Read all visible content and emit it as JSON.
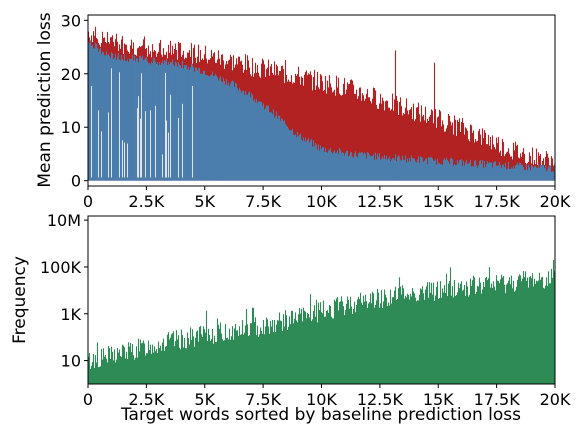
{
  "chart_data": [
    {
      "type": "area",
      "ylabel": "Mean prediction loss",
      "xlim": [
        0,
        20000
      ],
      "ylim": [
        -1,
        31
      ],
      "x_ticks": [
        0,
        2500,
        5000,
        7500,
        10000,
        12500,
        15000,
        17500,
        20000
      ],
      "x_tick_labels": [
        "0",
        "2.5K",
        "5K",
        "7.5K",
        "10K",
        "12.5K",
        "15K",
        "17.5K",
        "20K"
      ],
      "y_ticks": [
        0,
        10,
        20,
        30
      ],
      "y_tick_labels": [
        "0",
        "10",
        "20",
        "30"
      ],
      "colors": {
        "baseline": "#4682b4",
        "upper": "#b22222"
      },
      "series": [
        {
          "role": "baseline",
          "color": "#4682b4",
          "x": [
            0,
            500,
            1000,
            2000,
            3000,
            4000,
            5000,
            6000,
            7000,
            8000,
            9000,
            10000,
            11000,
            12000,
            13000,
            14000,
            15000,
            16000,
            17000,
            18000,
            19000,
            20000
          ],
          "values": [
            26,
            24.5,
            23.5,
            22.8,
            22.3,
            21.8,
            20.5,
            18.5,
            16,
            12.5,
            8.5,
            6,
            5.2,
            4.7,
            4.3,
            4,
            3.7,
            3.4,
            3.1,
            2.8,
            2.5,
            2.3
          ]
        },
        {
          "role": "upper",
          "color": "#b22222",
          "x": [
            0,
            500,
            1000,
            2000,
            3000,
            4000,
            5000,
            6000,
            7000,
            8000,
            9000,
            10000,
            11000,
            12000,
            13000,
            14000,
            15000,
            16000,
            17000,
            18000,
            19000,
            20000
          ],
          "values": [
            28,
            26.5,
            25.8,
            25.3,
            24.8,
            24.2,
            23.5,
            22.5,
            21.5,
            20.5,
            19.5,
            18.5,
            17.5,
            16,
            14.5,
            13,
            11.5,
            10,
            8,
            6,
            4.5,
            3.5
          ]
        }
      ]
    },
    {
      "type": "bar",
      "ylabel": "Frequency",
      "xlabel": "Target words sorted by baseline prediction loss",
      "xlim": [
        0,
        20000
      ],
      "yscale": "log",
      "ylim": [
        1,
        15000000
      ],
      "x_ticks": [
        0,
        2500,
        5000,
        7500,
        10000,
        12500,
        15000,
        17500,
        20000
      ],
      "x_tick_labels": [
        "0",
        "2.5K",
        "5K",
        "7.5K",
        "10K",
        "12.5K",
        "15K",
        "17.5K",
        "20K"
      ],
      "y_ticks": [
        10,
        1000,
        100000,
        10000000
      ],
      "y_tick_labels": [
        "10",
        "1K",
        "100K",
        "10M"
      ],
      "color": "#2e8b57",
      "x": [
        0,
        1000,
        2000,
        3000,
        4000,
        5000,
        6000,
        7000,
        8000,
        9000,
        10000,
        11000,
        12000,
        13000,
        14000,
        15000,
        16000,
        17000,
        18000,
        19000,
        20000
      ],
      "values": [
        8,
        15,
        25,
        45,
        70,
        110,
        150,
        220,
        350,
        600,
        1100,
        2000,
        3500,
        5000,
        7000,
        9000,
        12000,
        15000,
        20000,
        26000,
        32000
      ]
    }
  ]
}
